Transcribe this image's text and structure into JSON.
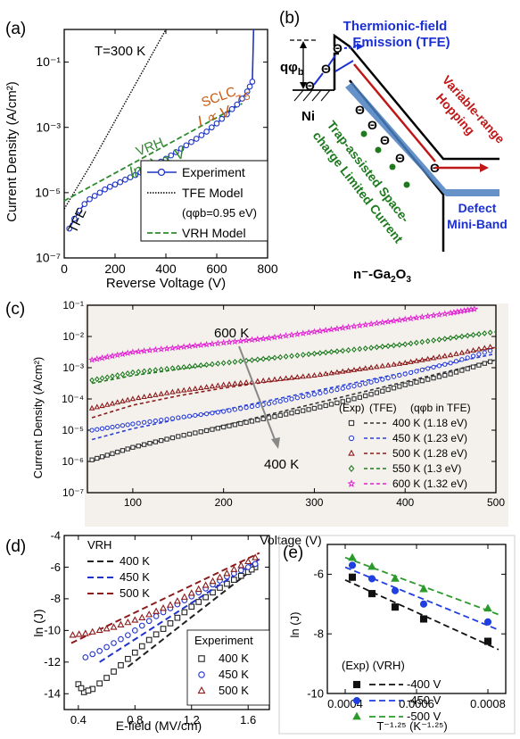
{
  "panels": {
    "a": {
      "label": "(a)"
    },
    "b": {
      "label": "(b)"
    },
    "c": {
      "label": "(c)"
    },
    "d": {
      "label": "(d)"
    },
    "e": {
      "label": "(e)"
    }
  },
  "colors": {
    "exp_blue": "#1f35c8",
    "vrh_green": "#2e8b2e",
    "tfe_black": "#000000",
    "sclc_orange": "#c85a10",
    "hop_red": "#c01818",
    "tfe_blue": "#1a2fd6",
    "c400": "#333333",
    "c450": "#2b3fd6",
    "c500": "#8b1a1a",
    "c550": "#1f7a1f",
    "c600": "#e020d0",
    "d400": "#222222",
    "d450": "#2233cc",
    "d500": "#8b1a1a",
    "e400": "#111111",
    "e450": "#1f3fe0",
    "e500": "#2a9a2a",
    "arrow_gray": "#888888",
    "miniband": "#4a7fc0"
  },
  "diagram": {
    "q_phi": "qφ",
    "q_phi_sub": "b",
    "metal": "Ni",
    "semiconductor": "n⁻-Ga",
    "semiconductor_sub1": "2",
    "semiconductor_mid": "O",
    "semiconductor_sub2": "3",
    "tfe_label_1": "Thermionic-field",
    "tfe_label_2": "Emission (TFE)",
    "vrh_label_1": "Variable-range",
    "vrh_label_2": "Hopping",
    "trap_label_1": "Trap-assisted Space-",
    "trap_label_2": "charge Limited Current",
    "miniband_1": "Defect",
    "miniband_2": "Mini-Band",
    "electron": "Θ"
  },
  "chart_data": [
    {
      "panel": "a",
      "type": "line",
      "xlabel": "Reverse Voltage (V)",
      "ylabel": "Current Density (A/cm²)",
      "xlim": [
        0,
        800
      ],
      "ylim_log10": [
        -7,
        0
      ],
      "log_y": true,
      "xticks": [
        "0",
        "200",
        "400",
        "600",
        "800"
      ],
      "yticks": [
        "10⁻⁷",
        "10⁻⁵",
        "10⁻³",
        "10⁻¹"
      ],
      "annotations": {
        "temp": "T=300 K",
        "tfe": "TFE",
        "vrh": "VRH",
        "vrh_eq": "ln(I) ∝ V",
        "sclc": "SCLC",
        "sclc_eq_base": "I ∝ V",
        "sclc_eq_exp": "7.5"
      },
      "legend": {
        "experiment": "Experiment",
        "tfe_model": "TFE Model",
        "tfe_param": "(qφb=0.95 eV)",
        "vrh_model": "VRH Model"
      },
      "series": [
        {
          "name": "Experiment",
          "x": [
            20,
            40,
            60,
            80,
            100,
            120,
            140,
            160,
            180,
            200,
            220,
            240,
            260,
            280,
            300,
            320,
            340,
            360,
            380,
            400,
            420,
            440,
            460,
            480,
            500,
            520,
            540,
            560,
            580,
            600,
            620,
            640,
            660,
            680,
            700,
            720,
            730,
            740,
            745
          ],
          "log10_y": [
            -6.1,
            -5.8,
            -5.55,
            -5.35,
            -5.2,
            -5.1,
            -5.0,
            -4.9,
            -4.82,
            -4.75,
            -4.68,
            -4.6,
            -4.53,
            -4.46,
            -4.38,
            -4.3,
            -4.22,
            -4.13,
            -4.05,
            -3.96,
            -3.86,
            -3.76,
            -3.65,
            -3.55,
            -3.45,
            -3.35,
            -3.24,
            -3.13,
            -3.0,
            -2.88,
            -2.74,
            -2.6,
            -2.44,
            -2.3,
            -2.12,
            -1.9,
            -1.75,
            -1.6,
            0.0
          ]
        },
        {
          "name": "TFE Model",
          "x": [
            0,
            100,
            200,
            300,
            400
          ],
          "log10_y": [
            -5.5,
            -4.2,
            -2.8,
            -1.4,
            0.0
          ]
        },
        {
          "name": "VRH Model",
          "x": [
            0,
            200,
            400,
            600,
            700
          ],
          "log10_y": [
            -5.25,
            -4.4,
            -3.55,
            -2.7,
            -2.27
          ]
        }
      ]
    },
    {
      "panel": "c",
      "type": "line",
      "xlabel": "Voltage (V)",
      "ylabel": "Current Density (A/cm²)",
      "xlim": [
        50,
        500
      ],
      "ylim_log10": [
        -7,
        -1
      ],
      "log_y": true,
      "xticks": [
        "100",
        "200",
        "300",
        "400",
        "500"
      ],
      "yticks": [
        "10⁻⁷",
        "10⁻⁶",
        "10⁻⁵",
        "10⁻⁴",
        "10⁻³",
        "10⁻²",
        "10⁻¹"
      ],
      "annotations": {
        "hot": "600 K",
        "cold": "400 K"
      },
      "legend": {
        "header_exp": "(Exp)",
        "header_tfe": "(TFE)",
        "header_param": "(qφb in TFE)"
      },
      "series": [
        {
          "name": "400 K (1.18 eV)",
          "x": [
            55,
            100,
            150,
            200,
            250,
            300,
            350,
            400,
            450,
            500
          ],
          "log10_y": [
            -5.95,
            -5.55,
            -5.2,
            -4.9,
            -4.6,
            -4.3,
            -3.95,
            -3.55,
            -3.2,
            -2.75
          ],
          "tfe_log10_y": [
            -6.0,
            -5.55,
            -5.2,
            -4.85,
            -4.5,
            -4.15,
            -3.8,
            -3.45,
            -3.1,
            -2.75
          ]
        },
        {
          "name": "450 K (1.23 eV)",
          "x": [
            55,
            100,
            150,
            200,
            250,
            300,
            350,
            400,
            450,
            500
          ],
          "log10_y": [
            -5.0,
            -4.8,
            -4.6,
            -4.4,
            -4.15,
            -3.85,
            -3.55,
            -3.2,
            -2.85,
            -2.4
          ],
          "tfe_log10_y": [
            -5.3,
            -4.95,
            -4.65,
            -4.35,
            -4.05,
            -3.75,
            -3.45,
            -3.15,
            -2.85,
            -2.55
          ]
        },
        {
          "name": "500 K (1.28 eV)",
          "x": [
            55,
            100,
            150,
            200,
            250,
            300,
            350,
            400,
            450,
            500
          ],
          "log10_y": [
            -4.3,
            -4.0,
            -3.75,
            -3.55,
            -3.4,
            -3.25,
            -3.05,
            -2.85,
            -2.6,
            -2.3
          ],
          "tfe_log10_y": [
            -4.6,
            -4.2,
            -3.9,
            -3.65,
            -3.45,
            -3.25,
            -3.05,
            -2.85,
            -2.6,
            -2.35
          ]
        },
        {
          "name": "550 K (1.3 eV)",
          "x": [
            55,
            100,
            150,
            200,
            250,
            300,
            350,
            400,
            450,
            500
          ],
          "log10_y": [
            -3.4,
            -3.15,
            -3.0,
            -2.85,
            -2.7,
            -2.55,
            -2.4,
            -2.25,
            -2.05,
            -1.85
          ],
          "tfe_log10_y": [
            -3.5,
            -3.25,
            -3.05,
            -2.85,
            -2.7,
            -2.55,
            -2.4,
            -2.25,
            -2.05,
            -1.85
          ]
        },
        {
          "name": "600 K (1.32 eV)",
          "x": [
            55,
            100,
            150,
            200,
            250,
            300,
            350,
            400,
            450,
            480
          ],
          "log10_y": [
            -2.75,
            -2.5,
            -2.35,
            -2.2,
            -2.05,
            -1.85,
            -1.65,
            -1.45,
            -1.25,
            -1.1
          ],
          "tfe_log10_y": [
            -2.75,
            -2.5,
            -2.35,
            -2.2,
            -2.05,
            -1.85,
            -1.65,
            -1.45,
            -1.25,
            -1.1
          ]
        }
      ]
    },
    {
      "panel": "d",
      "type": "scatter",
      "xlabel": "E-field (MV/cm)",
      "ylabel": "ln (J)",
      "xlim": [
        0.3,
        1.75
      ],
      "ylim": [
        -15,
        -4
      ],
      "xticks": [
        "0.4",
        "0.8",
        "1.2",
        "1.6"
      ],
      "yticks": [
        "-14",
        "-12",
        "-10",
        "-8",
        "-6",
        "-4"
      ],
      "legend": {
        "vrh_title": "VRH",
        "exp_title": "Experiment"
      },
      "series": [
        {
          "name": "400 K",
          "x": [
            0.4,
            0.44,
            0.5,
            0.6,
            0.7,
            0.8,
            0.9,
            1.0,
            1.1,
            1.2,
            1.3,
            1.4,
            1.5,
            1.6,
            1.65
          ],
          "y": [
            -13.4,
            -13.9,
            -13.7,
            -13.0,
            -12.2,
            -11.4,
            -10.6,
            -9.9,
            -9.2,
            -8.5,
            -7.9,
            -7.3,
            -6.8,
            -6.3,
            -6.0
          ],
          "vrh_x": [
            0.75,
            1.68
          ],
          "vrh_y": [
            -12.3,
            -5.8
          ]
        },
        {
          "name": "450 K",
          "x": [
            0.45,
            0.55,
            0.65,
            0.75,
            0.85,
            0.95,
            1.05,
            1.15,
            1.25,
            1.35,
            1.45,
            1.55,
            1.65
          ],
          "y": [
            -11.7,
            -11.3,
            -10.8,
            -10.3,
            -9.7,
            -9.1,
            -8.6,
            -8.1,
            -7.6,
            -7.1,
            -6.6,
            -6.2,
            -5.8
          ],
          "vrh_x": [
            0.55,
            1.68
          ],
          "vrh_y": [
            -12.0,
            -5.5
          ]
        },
        {
          "name": "500 K",
          "x": [
            0.36,
            0.45,
            0.55,
            0.65,
            0.75,
            0.85,
            0.95,
            1.05,
            1.15,
            1.25,
            1.35,
            1.45,
            1.55,
            1.65
          ],
          "y": [
            -10.3,
            -10.2,
            -10.0,
            -9.8,
            -9.5,
            -9.2,
            -8.8,
            -8.4,
            -7.9,
            -7.4,
            -6.9,
            -6.4,
            -5.9,
            -5.4
          ],
          "vrh_x": [
            0.35,
            1.68
          ],
          "vrh_y": [
            -10.8,
            -5.1
          ]
        }
      ]
    },
    {
      "panel": "e",
      "type": "scatter",
      "xlabel": "T⁻¹·²⁵ (K⁻¹·²⁵)",
      "ylabel": "ln (J)",
      "xlim": [
        0.00035,
        0.00085
      ],
      "ylim": [
        -10,
        -5
      ],
      "xticks": [
        "0.0004",
        "0.0006",
        "0.0008"
      ],
      "yticks": [
        "-10",
        "-8",
        "-6"
      ],
      "legend": {
        "header": "(Exp) (VRH)"
      },
      "series": [
        {
          "name": "-400 V",
          "x": [
            0.00042,
            0.000475,
            0.00054,
            0.00062,
            0.0008
          ],
          "y": [
            -6.1,
            -6.65,
            -7.1,
            -7.5,
            -8.25
          ]
        },
        {
          "name": "-450 V",
          "x": [
            0.00042,
            0.000475,
            0.00054,
            0.00062,
            0.0008
          ],
          "y": [
            -5.7,
            -6.15,
            -6.55,
            -7.0,
            -7.6
          ]
        },
        {
          "name": "-500 V",
          "x": [
            0.00042,
            0.000475,
            0.00054,
            0.00062,
            0.0008
          ],
          "y": [
            -5.45,
            -5.75,
            -6.15,
            -6.5,
            -7.15
          ]
        }
      ]
    }
  ]
}
